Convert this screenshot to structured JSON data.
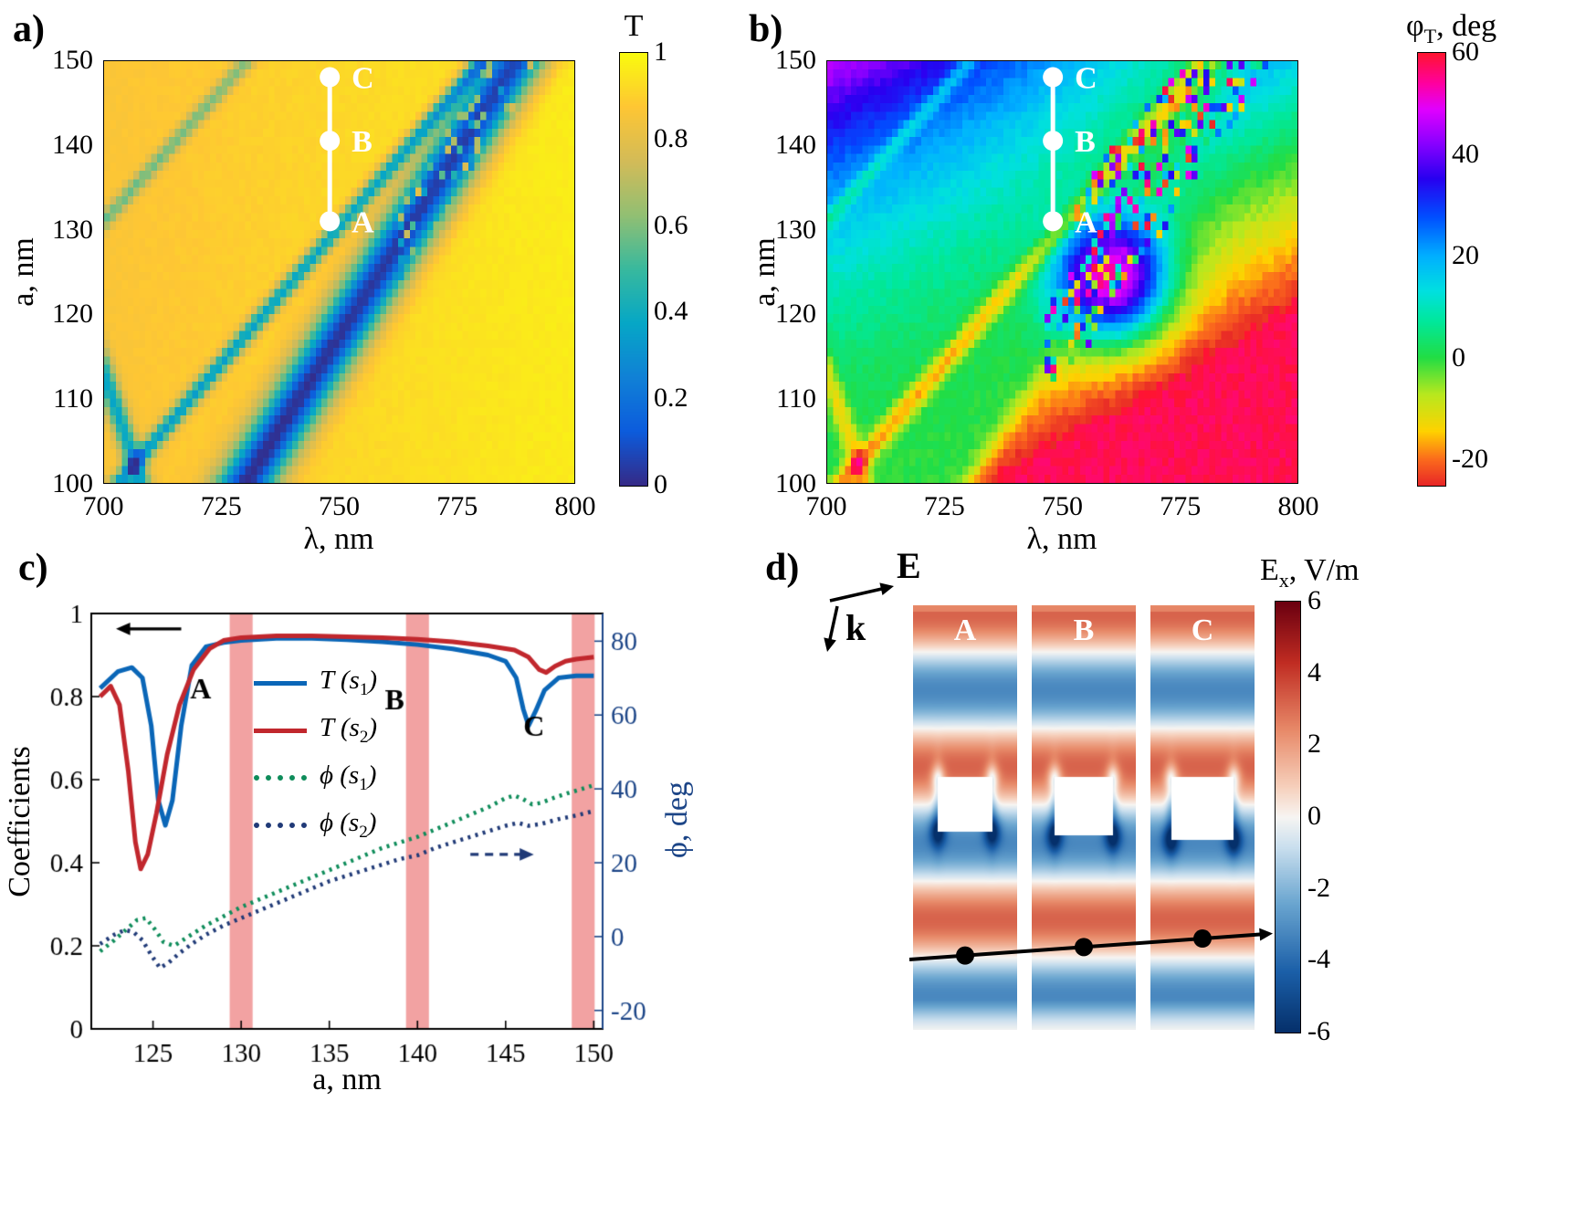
{
  "colormaps": {
    "parula": [
      [
        0,
        "#352a87"
      ],
      [
        0.125,
        "#0c5cdd"
      ],
      [
        0.25,
        "#1081d6"
      ],
      [
        0.375,
        "#06a7c6"
      ],
      [
        0.5,
        "#38b99e"
      ],
      [
        0.625,
        "#92bf73"
      ],
      [
        0.75,
        "#d3bb58"
      ],
      [
        0.875,
        "#fec634"
      ],
      [
        1,
        "#f9fb0e"
      ]
    ],
    "phase": [
      [
        0,
        "#e82727"
      ],
      [
        0.06,
        "#fb6b1c"
      ],
      [
        0.125,
        "#ffd200"
      ],
      [
        0.21,
        "#b8e81e"
      ],
      [
        0.295,
        "#22dd44"
      ],
      [
        0.38,
        "#00e89c"
      ],
      [
        0.45,
        "#00e0e0"
      ],
      [
        0.53,
        "#00b0ff"
      ],
      [
        0.62,
        "#0050ff"
      ],
      [
        0.71,
        "#2800f0"
      ],
      [
        0.79,
        "#8800ff"
      ],
      [
        0.87,
        "#e000ff"
      ],
      [
        0.93,
        "#ff00a0"
      ],
      [
        1,
        "#ff1430"
      ]
    ],
    "rdbu": [
      [
        0,
        "#05306b"
      ],
      [
        0.14,
        "#1b5fa8"
      ],
      [
        0.3,
        "#6ba6d0"
      ],
      [
        0.43,
        "#cadfee"
      ],
      [
        0.5,
        "#f7f5f2"
      ],
      [
        0.57,
        "#f6d0bc"
      ],
      [
        0.7,
        "#e88b6a"
      ],
      [
        0.86,
        "#c02c22"
      ],
      [
        1,
        "#6b0010"
      ]
    ]
  },
  "chart_data": [
    {
      "type": "heatmap",
      "panel_label": "a)",
      "xlabel": "λ, nm",
      "ylabel": "a, nm",
      "x_range": [
        700,
        800
      ],
      "y_range": [
        100,
        150
      ],
      "x_ticks": [
        700,
        725,
        750,
        775,
        800
      ],
      "y_ticks": [
        100,
        110,
        120,
        130,
        140,
        150
      ],
      "colorbar": {
        "title": "T",
        "range": [
          0,
          1
        ],
        "ticks": [
          1,
          0.8,
          0.6,
          0.4,
          0.2,
          0
        ]
      },
      "colormap": "parula",
      "base_lo": 0.865,
      "base_slope": 0.1,
      "bands": [
        {
          "l0": 730,
          "slope": 1.15,
          "width": 4.5,
          "min": 0.03
        },
        {
          "l0": 703,
          "slope": 1.55,
          "width": 1.6,
          "min": 0.38
        },
        {
          "l0": 708,
          "slope": -0.62,
          "width": 1.5,
          "min": 0.42
        },
        {
          "l0": 650.4,
          "slope": 1.6,
          "width": 1.5,
          "min": 0.62
        }
      ],
      "markers": {
        "lambda": 748,
        "points": [
          {
            "label": "A",
            "a": 131
          },
          {
            "label": "B",
            "a": 140.5
          },
          {
            "label": "C",
            "a": 148
          }
        ]
      }
    },
    {
      "type": "heatmap",
      "panel_label": "b)",
      "xlabel": "λ, nm",
      "ylabel": "a, nm",
      "x_range": [
        700,
        800
      ],
      "y_range": [
        100,
        150
      ],
      "x_ticks": [
        700,
        725,
        750,
        775,
        800
      ],
      "y_ticks": [
        100,
        110,
        120,
        130,
        140,
        150
      ],
      "colorbar": {
        "title_main": "φ",
        "title_sub": "T",
        "title_rest": ", deg",
        "range": [
          -25,
          60
        ],
        "ticks": [
          60,
          40,
          20,
          0,
          -20
        ]
      },
      "colormap": "phase",
      "main_band": {
        "l0": 730,
        "slope": 1.15
      },
      "field": {
        "left_k": 0.55,
        "left_pow": 1.5,
        "right_base": -24,
        "right_da": 0.9,
        "right_dl": 0.45,
        "right_min": -27,
        "blend": 1.5
      },
      "jumps": [
        {
          "l0": 703,
          "slope": 1.55,
          "width": 2.0,
          "depth": -18
        },
        {
          "l0": 708,
          "slope": -0.62,
          "width": 1.5,
          "depth": -14
        },
        {
          "l0": 650.4,
          "slope": 1.6,
          "width": 1.5,
          "depth": -12
        }
      ],
      "hotspot": {
        "lambda": 761,
        "a": 124,
        "sl": 8,
        "sa": 5,
        "amp": 58
      },
      "markers": {
        "lambda": 748,
        "points": [
          {
            "label": "A",
            "a": 131
          },
          {
            "label": "B",
            "a": 140.5
          },
          {
            "label": "C",
            "a": 148
          }
        ]
      }
    },
    {
      "type": "line",
      "panel_label": "c)",
      "xlabel": "a, nm",
      "ylabel_left": "Coefficients",
      "ylabel_right": "ϕ, deg",
      "x_range": [
        121.5,
        150.5
      ],
      "x_ticks": [
        125,
        130,
        135,
        140,
        145,
        150
      ],
      "y_left_range": [
        0,
        1
      ],
      "y_left_ticks": [
        0,
        0.2,
        0.4,
        0.6,
        0.8,
        1
      ],
      "y_right_range": [
        -25,
        87.5
      ],
      "y_right_ticks": [
        -20,
        0,
        20,
        40,
        60,
        80
      ],
      "right_axis_color": "#1c4587",
      "highlight": {
        "color": "#f2a2a2",
        "centers": [
          130,
          140,
          149.4
        ],
        "width": 1.3
      },
      "series": [
        {
          "name": "T (s1)",
          "legend_pre": "T (s",
          "legend_sub": "1",
          "legend_post": ")",
          "color": "#0a66b7",
          "style": "solid",
          "axis": "left",
          "x": [
            122,
            123,
            123.8,
            124.4,
            124.9,
            125.3,
            125.7,
            126.1,
            126.6,
            127.2,
            128,
            129,
            130,
            132,
            134,
            136,
            138,
            140,
            142,
            144,
            145,
            145.6,
            146,
            146.3,
            146.7,
            147.2,
            148,
            149,
            150
          ],
          "y": [
            0.82,
            0.86,
            0.87,
            0.845,
            0.73,
            0.55,
            0.49,
            0.55,
            0.73,
            0.875,
            0.92,
            0.93,
            0.935,
            0.94,
            0.94,
            0.937,
            0.932,
            0.925,
            0.915,
            0.9,
            0.885,
            0.845,
            0.77,
            0.73,
            0.765,
            0.815,
            0.845,
            0.85,
            0.85
          ]
        },
        {
          "name": "T (s2)",
          "legend_pre": "T (s",
          "legend_sub": "2",
          "legend_post": ")",
          "color": "#c1272d",
          "style": "solid",
          "axis": "left",
          "x": [
            122,
            122.6,
            123.1,
            123.6,
            124,
            124.3,
            124.7,
            125.2,
            125.8,
            126.5,
            127.3,
            128.2,
            129,
            130,
            132,
            134,
            136,
            138,
            140,
            142,
            144,
            145.5,
            146.3,
            146.9,
            147.3,
            147.8,
            148.4,
            149,
            150
          ],
          "y": [
            0.8,
            0.825,
            0.78,
            0.62,
            0.45,
            0.385,
            0.42,
            0.52,
            0.66,
            0.78,
            0.865,
            0.915,
            0.935,
            0.942,
            0.946,
            0.946,
            0.944,
            0.942,
            0.938,
            0.932,
            0.922,
            0.912,
            0.895,
            0.865,
            0.858,
            0.873,
            0.885,
            0.89,
            0.895
          ]
        },
        {
          "name": "phi (s1)",
          "legend_pre": "ϕ (s",
          "legend_sub": "1",
          "legend_post": ")",
          "color": "#0e8c5a",
          "style": "dotted",
          "axis": "right",
          "x": [
            122,
            122.8,
            123.5,
            124.1,
            124.6,
            125.1,
            125.6,
            126.2,
            127,
            128,
            129,
            130,
            131,
            132,
            133,
            134,
            135,
            136,
            137,
            138,
            139,
            140,
            141,
            142,
            143,
            144,
            145,
            145.5,
            146,
            146.5,
            147,
            147.7,
            148.5,
            149.2,
            150
          ],
          "y": [
            -4,
            -1,
            2,
            4.5,
            5,
            2,
            -1.5,
            -2.5,
            0,
            3,
            5.5,
            8,
            10,
            12,
            14,
            16,
            18,
            20,
            22,
            24,
            25.5,
            27,
            29,
            31,
            33,
            35,
            37.5,
            38.2,
            37.2,
            35.8,
            36.2,
            37.5,
            38.8,
            39.8,
            41
          ]
        },
        {
          "name": "phi (s2)",
          "legend_pre": "ϕ (s",
          "legend_sub": "2",
          "legend_post": ")",
          "color": "#203a77",
          "style": "dotted",
          "axis": "right",
          "x": [
            122,
            122.8,
            123.4,
            123.9,
            124.4,
            124.9,
            125.4,
            125.9,
            126.5,
            127.2,
            128,
            129,
            130,
            131,
            132,
            133,
            134,
            135,
            136,
            137,
            138,
            139,
            140,
            141,
            142,
            143,
            144,
            145,
            145.7,
            146.3,
            147,
            148,
            149,
            150
          ],
          "y": [
            -2,
            0.5,
            1.8,
            1.2,
            -1,
            -5,
            -8.5,
            -7,
            -4.5,
            -2,
            0.5,
            3,
            5,
            7,
            9,
            11,
            13,
            15,
            16.5,
            18,
            19.5,
            21,
            22,
            24,
            25.5,
            27,
            28.5,
            30,
            30.8,
            30,
            30.5,
            31.8,
            32.8,
            34
          ]
        }
      ],
      "annotations": [
        {
          "text": "A",
          "x": 127.7,
          "y_left": 0.795
        },
        {
          "text": "B",
          "x": 138.7,
          "y_left": 0.77
        },
        {
          "text": "C",
          "x": 146.6,
          "y_left": 0.705
        }
      ],
      "arrow_left": {
        "x1": 126.6,
        "x2": 122.9,
        "y_left": 0.963,
        "color": "#000000"
      },
      "arrow_right": {
        "x1": 143.0,
        "x2": 146.6,
        "y_left": 0.42,
        "color": "#203a77"
      }
    },
    {
      "type": "field-maps",
      "panel_label": "d)",
      "e_label": "E",
      "k_label": "k",
      "maps": [
        {
          "label": "A",
          "hole_w": 0.52
        },
        {
          "label": "B",
          "hole_w": 0.56
        },
        {
          "label": "C",
          "hole_w": 0.6
        }
      ],
      "field": {
        "amplitude": 3.2,
        "period": 0.36,
        "y_phase": 0.02,
        "hole_y0": 0.405
      },
      "dots_y": [
        0.825,
        0.805,
        0.785
      ],
      "colorbar": {
        "title_main": "E",
        "title_sub": "x",
        "title_rest": ", V/m",
        "range": [
          -6,
          6
        ],
        "ticks": [
          6,
          4,
          2,
          0,
          -2,
          -4,
          -6
        ]
      }
    }
  ]
}
